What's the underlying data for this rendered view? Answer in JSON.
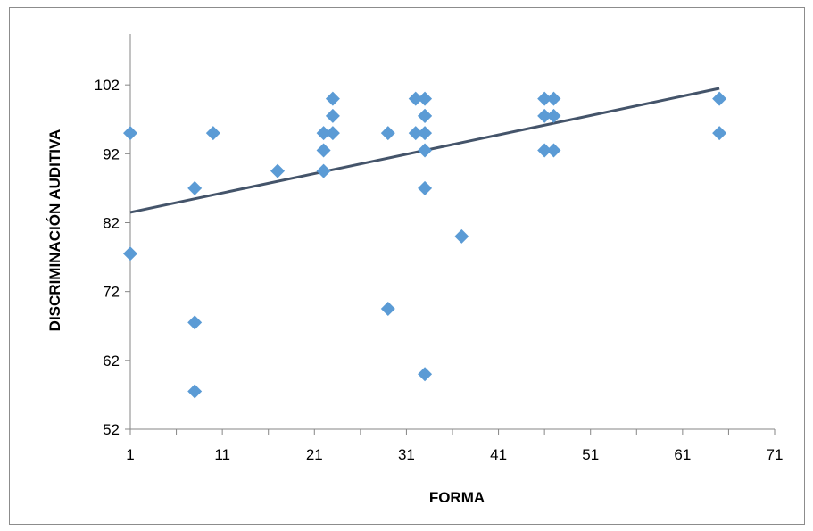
{
  "chart_data": {
    "type": "scatter",
    "title": "",
    "xlabel": "FORMA",
    "ylabel": "DISCRIMINACIÓN  AUDITIVA",
    "xlim": [
      1,
      71
    ],
    "ylim": [
      52,
      112
    ],
    "x_ticks": [
      "1",
      "11",
      "21",
      "31",
      "41",
      "51",
      "61",
      "71"
    ],
    "y_ticks": [
      "52",
      "62",
      "72",
      "82",
      "92",
      "102"
    ],
    "grid": false,
    "legend": "none",
    "marker_color": "#5b9bd5",
    "trendline_color": "#44546a",
    "series": [
      {
        "x": [
          1,
          1,
          8,
          8,
          8,
          10,
          17,
          22,
          22,
          22,
          23,
          23,
          23,
          29,
          29,
          32,
          32,
          33,
          33,
          33,
          33,
          33,
          33,
          33,
          37,
          46,
          46,
          46,
          47,
          47,
          47,
          65,
          65
        ],
        "y": [
          95,
          77.5,
          87,
          67.5,
          57.5,
          95,
          89.5,
          89.5,
          92.5,
          95,
          95,
          97.5,
          100,
          95,
          69.5,
          100,
          95,
          100,
          97.5,
          95,
          92.5,
          87,
          60,
          97.5,
          80,
          100,
          97.5,
          92.5,
          100,
          97.5,
          92.5,
          100,
          95
        ]
      }
    ],
    "trendline": {
      "x": [
        1,
        65
      ],
      "y": [
        83.5,
        101.5
      ]
    }
  }
}
